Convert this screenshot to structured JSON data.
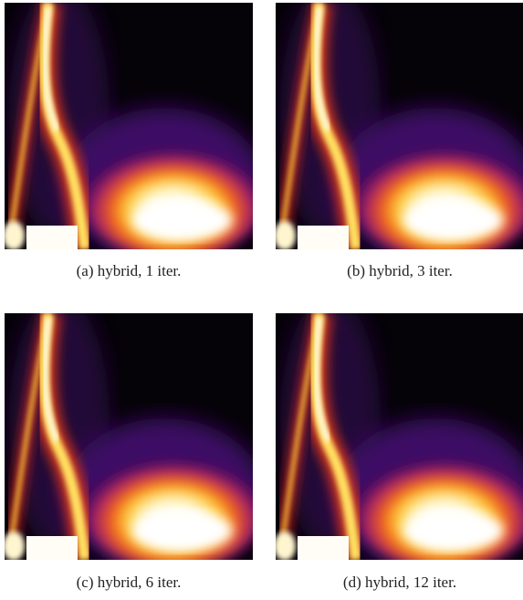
{
  "figure": {
    "panels": [
      {
        "caption": "(a) hybrid, 1 iter."
      },
      {
        "caption": "(b) hybrid, 3 iter."
      },
      {
        "caption": "(c) hybrid, 6 iter."
      },
      {
        "caption": "(d) hybrid, 12 iter."
      }
    ]
  }
}
